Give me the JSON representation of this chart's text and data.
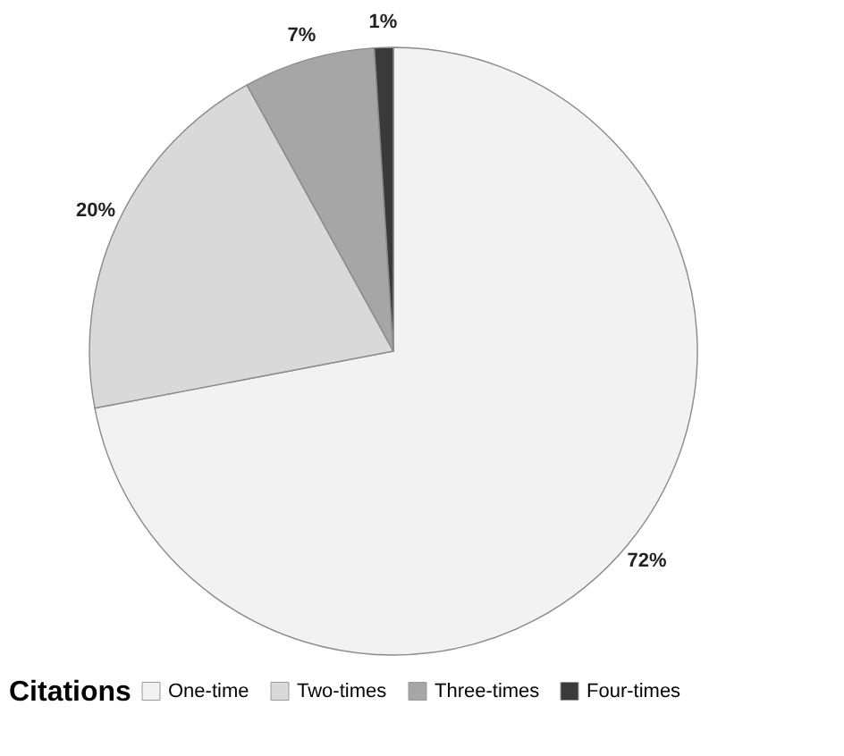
{
  "chart_data": {
    "type": "pie",
    "categories": [
      "One-time",
      "Two-times",
      "Three-times",
      "Four-times"
    ],
    "values": [
      72,
      20,
      7,
      1
    ],
    "colors": [
      "#f2f2f2",
      "#d9d9d9",
      "#a6a6a6",
      "#3a3a3a"
    ],
    "value_labels": [
      "72%",
      "20%",
      "7%",
      "1%"
    ],
    "legend_title": "Citations",
    "legend": "bottom"
  }
}
